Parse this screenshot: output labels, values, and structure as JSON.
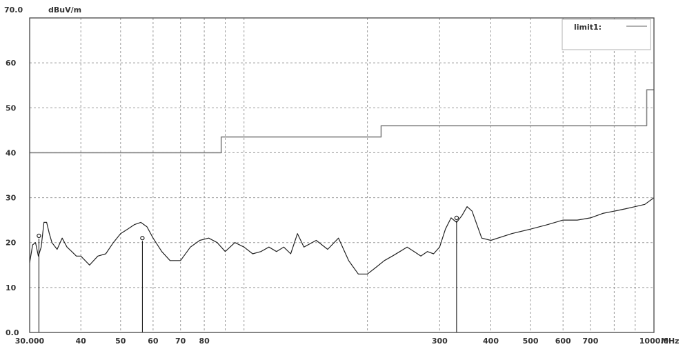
{
  "chart_data": {
    "type": "line",
    "title": "",
    "xlabel": "",
    "ylabel": "",
    "y_unit": "dBuV/m",
    "x_unit": "MHz",
    "x_scale": "log",
    "xlim": [
      30,
      1000
    ],
    "ylim": [
      0,
      70
    ],
    "grid": true,
    "legend_position": "top-right",
    "y_top_label": "70.0",
    "y_ticks": [
      {
        "value": 0,
        "label": "0.0"
      },
      {
        "value": 10,
        "label": "10"
      },
      {
        "value": 20,
        "label": "20"
      },
      {
        "value": 30,
        "label": "30"
      },
      {
        "value": 40,
        "label": "40"
      },
      {
        "value": 50,
        "label": "50"
      },
      {
        "value": 60,
        "label": "60"
      }
    ],
    "x_ticks": [
      {
        "value": 30,
        "label": "30.000"
      },
      {
        "value": 40,
        "label": "40"
      },
      {
        "value": 50,
        "label": "50"
      },
      {
        "value": 60,
        "label": "60"
      },
      {
        "value": 70,
        "label": "70"
      },
      {
        "value": 80,
        "label": "80"
      },
      {
        "value": 300,
        "label": "300"
      },
      {
        "value": 400,
        "label": "400"
      },
      {
        "value": 500,
        "label": "500"
      },
      {
        "value": 600,
        "label": "600"
      },
      {
        "value": 700,
        "label": "700"
      },
      {
        "value": 1000,
        "label": "1000.0"
      }
    ],
    "x_grid": [
      30,
      40,
      50,
      60,
      70,
      80,
      90,
      100,
      200,
      300,
      400,
      500,
      600,
      700,
      800,
      900,
      1000
    ],
    "series": [
      {
        "name": "limit1:",
        "kind": "limit",
        "color": "#808080",
        "x": [
          30,
          88,
          88,
          216,
          216,
          960,
          960,
          1000
        ],
        "y": [
          40,
          40,
          43.5,
          43.5,
          46,
          46,
          54,
          54
        ]
      },
      {
        "name": "",
        "kind": "measurement",
        "color": "#222222",
        "x": [
          30,
          30.5,
          31,
          31.5,
          32,
          32.5,
          33,
          33.5,
          34,
          35,
          36,
          37,
          38,
          39,
          40,
          42,
          44,
          46,
          48,
          50,
          52,
          54,
          56,
          58,
          60,
          63,
          66,
          70,
          74,
          78,
          82,
          86,
          90,
          95,
          100,
          105,
          110,
          115,
          120,
          125,
          130,
          135,
          140,
          150,
          160,
          170,
          180,
          190,
          200,
          210,
          220,
          230,
          240,
          250,
          260,
          270,
          280,
          290,
          300,
          310,
          320,
          330,
          340,
          350,
          360,
          380,
          400,
          450,
          500,
          550,
          600,
          650,
          700,
          750,
          800,
          850,
          900,
          950,
          1000
        ],
        "y": [
          15.5,
          19.5,
          20,
          17,
          19,
          24.5,
          24.5,
          22,
          20,
          18.5,
          21,
          19,
          18,
          17,
          17,
          15,
          17,
          17.5,
          20,
          22,
          23,
          24,
          24.5,
          23.5,
          21,
          18,
          16,
          16,
          19,
          20.5,
          21,
          20,
          18,
          20,
          19,
          17.5,
          18,
          19,
          18,
          19,
          17.5,
          22,
          19,
          20.5,
          18.5,
          21,
          16,
          13,
          13,
          14.5,
          16,
          17,
          18,
          19,
          18,
          17,
          18,
          17.5,
          19,
          23,
          25.5,
          24.5,
          26,
          28,
          27,
          21,
          20.5,
          22,
          23,
          24,
          25,
          25,
          25.5,
          26.5,
          27,
          27.5,
          28,
          28.5,
          30
        ]
      }
    ],
    "markers": [
      {
        "x": 31.6,
        "y": 21.5
      },
      {
        "x": 56.5,
        "y": 21
      },
      {
        "x": 330,
        "y": 25.5
      }
    ],
    "colors": {
      "frame": "#444444",
      "grid": "#9a9a9a",
      "limit": "#808080",
      "trace": "#222222",
      "marker_line": "#000000"
    }
  }
}
